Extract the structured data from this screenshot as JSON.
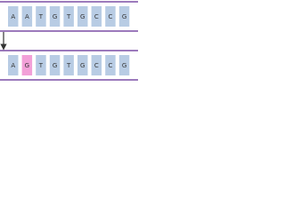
{
  "rows": [
    {
      "cells": [
        "A",
        "A",
        "T",
        "G",
        "T",
        "G",
        "C",
        "C",
        "G"
      ],
      "colors": [
        "#b8cce4",
        "#b8cce4",
        "#b8cce4",
        "#b8cce4",
        "#b8cce4",
        "#b8cce4",
        "#b8cce4",
        "#b8cce4",
        "#b8cce4"
      ]
    },
    {
      "cells": [
        "A",
        "G",
        "T",
        "G",
        "T",
        "G",
        "C",
        "C",
        "G"
      ],
      "colors": [
        "#b8cce4",
        "#f2a0d8",
        "#b8cce4",
        "#b8cce4",
        "#b8cce4",
        "#b8cce4",
        "#b8cce4",
        "#b8cce4",
        "#b8cce4"
      ]
    }
  ]
}
